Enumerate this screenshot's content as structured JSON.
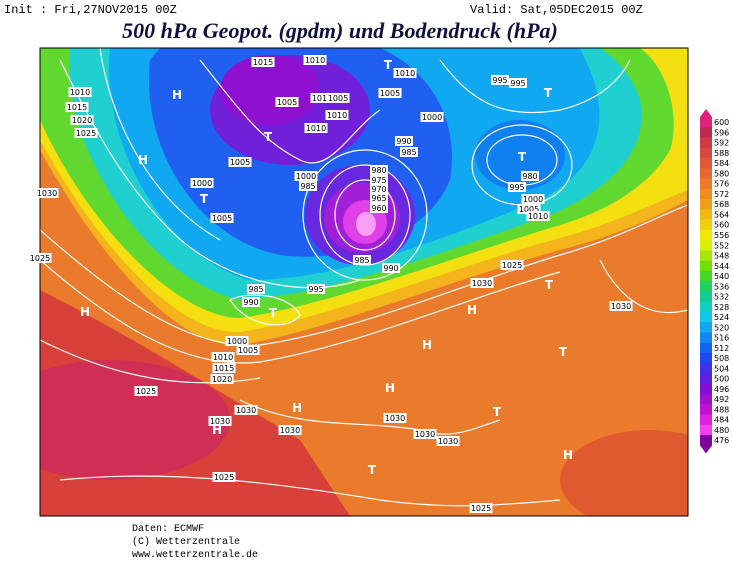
{
  "header": {
    "init": "Init : Fri,27NOV2015 00Z",
    "valid": "Valid: Sat,05DEC2015 00Z",
    "title": "500 hPa Geopot. (gpdm) und Bodendruck (hPa)"
  },
  "colorbar": {
    "levels": [
      600,
      596,
      592,
      588,
      584,
      580,
      576,
      572,
      568,
      564,
      560,
      556,
      552,
      548,
      544,
      540,
      536,
      532,
      528,
      524,
      520,
      516,
      512,
      508,
      504,
      500,
      496,
      492,
      488,
      484,
      480,
      476
    ],
    "colors": [
      "#e0207a",
      "#c02850",
      "#d03848",
      "#d84840",
      "#e05838",
      "#e86830",
      "#f07828",
      "#f08c20",
      "#f0a018",
      "#f0b810",
      "#f0d008",
      "#f0e800",
      "#d8f000",
      "#a8e800",
      "#70e000",
      "#40d820",
      "#20d060",
      "#10d090",
      "#10d0c0",
      "#10c8e8",
      "#10a8f0",
      "#1088f0",
      "#1068f0",
      "#2048f0",
      "#4030e8",
      "#6020e0",
      "#8010d8",
      "#a010d0",
      "#c010d0",
      "#e020e0",
      "#f040f0",
      "#8000a0"
    ]
  },
  "isobar_labels": [
    1015,
    1010,
    1005,
    1010,
    1005,
    1010,
    1010,
    1005,
    1010,
    1000,
    995,
    995,
    990,
    985,
    1005,
    1000,
    985,
    980,
    975,
    970,
    965,
    960,
    1000,
    1005,
    980,
    995,
    1000,
    1005,
    1010,
    985,
    990,
    995,
    985,
    990,
    1005,
    1000,
    1010,
    1015,
    1020,
    1025,
    1030,
    1030,
    1030,
    1030,
    1030,
    1030,
    1025,
    1025,
    1030,
    1025,
    1030,
    1025,
    1030,
    1025,
    1020,
    1015,
    1010
  ],
  "pressure_centers": [
    "H",
    "T",
    "T",
    "T",
    "H",
    "T",
    "T",
    "T",
    "H",
    "H",
    "H",
    "T",
    "T",
    "H",
    "H",
    "T",
    "H",
    "T",
    "H"
  ],
  "footer": [
    "Daten: ECMWF",
    "(C) Wetterzentrale",
    "www.wetterzentrale.de"
  ]
}
